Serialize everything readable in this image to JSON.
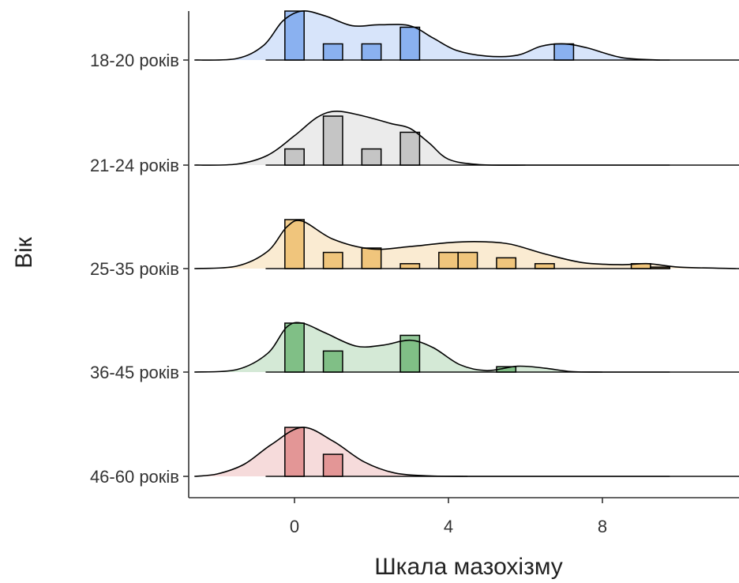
{
  "chart_data": {
    "type": "ridgeline",
    "xlabel": "Шкала мазохізму",
    "ylabel": "Вік",
    "x_ticks": [
      0,
      4,
      8
    ],
    "xlim": [
      -2.7,
      11.5
    ],
    "bin_width": 0.5,
    "hist_range": [
      -0.75,
      9.75
    ],
    "series": [
      {
        "name": "18-20 років",
        "color": "#4a86e8",
        "bins": [
          {
            "x": 0,
            "h": 1.0
          },
          {
            "x": 1,
            "h": 0.33
          },
          {
            "x": 2,
            "h": 0.33
          },
          {
            "x": 3,
            "h": 0.67
          },
          {
            "x": 7,
            "h": 0.33
          }
        ],
        "density": [
          [
            -2.6,
            0
          ],
          [
            -1.5,
            0.03
          ],
          [
            -0.8,
            0.3
          ],
          [
            -0.3,
            0.8
          ],
          [
            0.2,
            1.0
          ],
          [
            0.8,
            0.9
          ],
          [
            1.5,
            0.7
          ],
          [
            2.2,
            0.72
          ],
          [
            3.0,
            0.7
          ],
          [
            3.6,
            0.45
          ],
          [
            4.2,
            0.2
          ],
          [
            5.0,
            0.08
          ],
          [
            5.8,
            0.1
          ],
          [
            6.4,
            0.28
          ],
          [
            7.0,
            0.33
          ],
          [
            7.6,
            0.25
          ],
          [
            8.5,
            0.05
          ],
          [
            9.5,
            0
          ]
        ]
      },
      {
        "name": "21-24 років",
        "color": "#a6a6a6",
        "bins": [
          {
            "x": 0,
            "h": 0.33
          },
          {
            "x": 1,
            "h": 1.0
          },
          {
            "x": 2,
            "h": 0.33
          },
          {
            "x": 3,
            "h": 0.67
          }
        ],
        "density": [
          [
            -2.6,
            0
          ],
          [
            -1.5,
            0.02
          ],
          [
            -0.7,
            0.2
          ],
          [
            0.0,
            0.6
          ],
          [
            0.6,
            0.98
          ],
          [
            1.1,
            1.1
          ],
          [
            1.8,
            1.0
          ],
          [
            2.5,
            0.85
          ],
          [
            3.0,
            0.75
          ],
          [
            3.5,
            0.45
          ],
          [
            4.0,
            0.12
          ],
          [
            4.8,
            0.01
          ],
          [
            6.0,
            0
          ]
        ]
      },
      {
        "name": "25-35 років",
        "color": "#e8a534",
        "bins": [
          {
            "x": 0,
            "h": 1.0
          },
          {
            "x": 1,
            "h": 0.33
          },
          {
            "x": 2,
            "h": 0.42
          },
          {
            "x": 3,
            "h": 0.1
          },
          {
            "x": 4,
            "h": 0.33
          },
          {
            "x": 4.5,
            "h": 0.33
          },
          {
            "x": 5.5,
            "h": 0.22
          },
          {
            "x": 6.5,
            "h": 0.1
          },
          {
            "x": 9,
            "h": 0.1
          },
          {
            "x": 9.5,
            "h": 0.03
          }
        ],
        "density": [
          [
            -2.6,
            0
          ],
          [
            -1.5,
            0.05
          ],
          [
            -0.7,
            0.35
          ],
          [
            -0.2,
            0.85
          ],
          [
            0.2,
            0.97
          ],
          [
            1.0,
            0.6
          ],
          [
            2.0,
            0.4
          ],
          [
            3.0,
            0.45
          ],
          [
            4.0,
            0.53
          ],
          [
            4.8,
            0.55
          ],
          [
            5.6,
            0.5
          ],
          [
            6.5,
            0.3
          ],
          [
            7.5,
            0.12
          ],
          [
            8.5,
            0.08
          ],
          [
            9.2,
            0.1
          ],
          [
            10.0,
            0.03
          ],
          [
            11.5,
            0
          ]
        ]
      },
      {
        "name": "36-45 років",
        "color": "#3a9d46",
        "bins": [
          {
            "x": 0,
            "h": 1.0
          },
          {
            "x": 1,
            "h": 0.43
          },
          {
            "x": 3,
            "h": 0.75
          },
          {
            "x": 5.5,
            "h": 0.11
          }
        ],
        "density": [
          [
            -2.6,
            0
          ],
          [
            -1.5,
            0.05
          ],
          [
            -0.7,
            0.38
          ],
          [
            -0.2,
            0.92
          ],
          [
            0.2,
            1.0
          ],
          [
            0.8,
            0.8
          ],
          [
            1.6,
            0.53
          ],
          [
            2.3,
            0.55
          ],
          [
            3.0,
            0.65
          ],
          [
            3.6,
            0.5
          ],
          [
            4.3,
            0.15
          ],
          [
            5.0,
            0.03
          ],
          [
            5.8,
            0.12
          ],
          [
            6.5,
            0.08
          ],
          [
            7.2,
            0.01
          ],
          [
            8.0,
            0
          ]
        ]
      },
      {
        "name": "46-60 років",
        "color": "#d45d5d",
        "bins": [
          {
            "x": 0,
            "h": 1.0
          },
          {
            "x": 1,
            "h": 0.45
          }
        ],
        "density": [
          [
            -2.6,
            0
          ],
          [
            -2.0,
            0.05
          ],
          [
            -1.3,
            0.25
          ],
          [
            -0.6,
            0.65
          ],
          [
            0.2,
            1.0
          ],
          [
            1.0,
            0.72
          ],
          [
            1.8,
            0.3
          ],
          [
            2.6,
            0.07
          ],
          [
            3.5,
            0.01
          ],
          [
            4.5,
            0
          ]
        ]
      }
    ]
  }
}
